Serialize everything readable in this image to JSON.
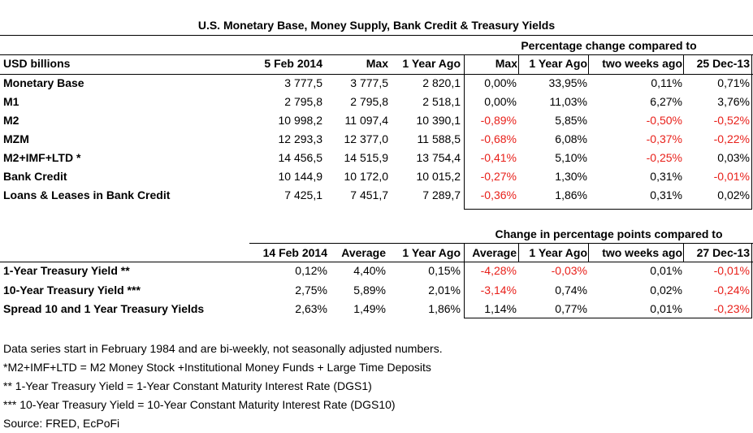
{
  "title": "U.S. Monetary Base, Money Supply, Bank Credit & Treasury Yields",
  "money": {
    "group_header": "Percentage change compared to",
    "columns": [
      "USD billions",
      "5 Feb 2014",
      "Max",
      "1 Year Ago",
      "Max",
      "1 Year Ago",
      "two weeks ago",
      "25 Dec-13"
    ],
    "rows": [
      {
        "label": "Monetary Base",
        "c1": "3 777,5",
        "c2": "3 777,5",
        "c3": "2 820,1",
        "p1": "0,00%",
        "p2": "33,95%",
        "p3": "0,11%",
        "p4": "0,71%"
      },
      {
        "label": "M1",
        "c1": "2 795,8",
        "c2": "2 795,8",
        "c3": "2 518,1",
        "p1": "0,00%",
        "p2": "11,03%",
        "p3": "6,27%",
        "p4": "3,76%"
      },
      {
        "label": "M2",
        "c1": "10 998,2",
        "c2": "11 097,4",
        "c3": "10 390,1",
        "p1": "-0,89%",
        "p2": "5,85%",
        "p3": "-0,50%",
        "p4": "-0,52%"
      },
      {
        "label": "MZM",
        "c1": "12 293,3",
        "c2": "12 377,0",
        "c3": "11 588,5",
        "p1": "-0,68%",
        "p2": "6,08%",
        "p3": "-0,37%",
        "p4": "-0,22%"
      },
      {
        "label": "M2+IMF+LTD *",
        "c1": "14 456,5",
        "c2": "14 515,9",
        "c3": "13 754,4",
        "p1": "-0,41%",
        "p2": "5,10%",
        "p3": "-0,25%",
        "p4": "0,03%"
      },
      {
        "label": "Bank Credit",
        "c1": "10 144,9",
        "c2": "10 172,0",
        "c3": "10 015,2",
        "p1": "-0,27%",
        "p2": "1,30%",
        "p3": "0,31%",
        "p4": "-0,01%"
      },
      {
        "label": "Loans & Leases in Bank Credit",
        "c1": "7 425,1",
        "c2": "7 451,7",
        "c3": "7 289,7",
        "p1": "-0,36%",
        "p2": "1,86%",
        "p3": "0,31%",
        "p4": "0,02%"
      }
    ]
  },
  "yields": {
    "group_header": "Change in percentage points compared to",
    "columns": [
      "",
      "14 Feb 2014",
      "Average",
      "1 Year Ago",
      "Average",
      "1 Year Ago",
      "two weeks ago",
      "27 Dec-13"
    ],
    "rows": [
      {
        "label": "1-Year Treasury Yield **",
        "c1": "0,12%",
        "c2": "4,40%",
        "c3": "0,15%",
        "p1": "-4,28%",
        "p2": "-0,03%",
        "p3": "0,01%",
        "p4": "-0,01%"
      },
      {
        "label": "10-Year Treasury Yield ***",
        "c1": "2,75%",
        "c2": "5,89%",
        "c3": "2,01%",
        "p1": "-3,14%",
        "p2": "0,74%",
        "p3": "0,02%",
        "p4": "-0,24%"
      },
      {
        "label": "Spread 10 and 1 Year Treasury Yields",
        "c1": "2,63%",
        "c2": "1,49%",
        "c3": "1,86%",
        "p1": "1,14%",
        "p2": "0,77%",
        "p3": "0,01%",
        "p4": "-0,23%"
      }
    ]
  },
  "notes": [
    "Data series start in February 1984 and are bi-weekly, not seasonally adjusted numbers.",
    "*M2+IMF+LTD =  M2 Money Stock +Institutional Money Funds + Large Time Deposits",
    "**  1-Year Treasury Yield = 1-Year Constant Maturity Interest Rate (DGS1)",
    "*** 10-Year Treasury Yield = 10-Year Constant Maturity Interest Rate (DGS10)",
    "Source: FRED, EcPoFi"
  ],
  "colors": {
    "negative": "#e8201a",
    "text": "#000000"
  }
}
